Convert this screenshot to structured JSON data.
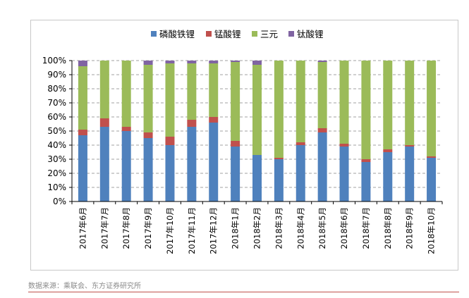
{
  "source_note": "数据来源：乘联会、东方证券研究所",
  "colors": {
    "lfp": "#4f81bd",
    "lmo": "#c0504d",
    "ncm": "#9bbb59",
    "lto": "#8064a2",
    "grid": "#a0a0a0",
    "rule": "#c0504d"
  },
  "chart_data": {
    "type": "bar",
    "stacked": true,
    "percent": true,
    "title": "",
    "xlabel": "",
    "ylabel": "",
    "ylim": [
      0,
      100
    ],
    "y_ticks": [
      "0%",
      "10%",
      "20%",
      "30%",
      "40%",
      "50%",
      "60%",
      "70%",
      "80%",
      "90%",
      "100%"
    ],
    "legend_position": "top",
    "grid": true,
    "categories": [
      "2017年6月",
      "2017年7月",
      "2017年8月",
      "2017年9月",
      "2017年10月",
      "2017年11月",
      "2017年12月",
      "2018年1月",
      "2018年2月",
      "2018年3月",
      "2018年4月",
      "2018年5月",
      "2018年6月",
      "2018年7月",
      "2018年8月",
      "2018年9月",
      "2018年10月"
    ],
    "series": [
      {
        "name": "磷酸铁锂",
        "color": "#4f81bd",
        "values": [
          47,
          53,
          50,
          45,
          40,
          53,
          56,
          39,
          33,
          30,
          40,
          49,
          39,
          28,
          35,
          39,
          31
        ]
      },
      {
        "name": "锰酸锂",
        "color": "#c0504d",
        "values": [
          4,
          6,
          3,
          4,
          6,
          5,
          4,
          4,
          0,
          1,
          2,
          3,
          2,
          2,
          2,
          1,
          1
        ]
      },
      {
        "name": "三元",
        "color": "#9bbb59",
        "values": [
          45,
          41,
          47,
          48,
          52,
          40,
          38,
          56,
          64,
          69,
          58,
          47,
          59,
          70,
          63,
          60,
          68
        ]
      },
      {
        "name": "钛酸锂",
        "color": "#8064a2",
        "values": [
          4,
          0,
          0,
          3,
          2,
          2,
          2,
          1,
          3,
          0,
          0,
          1,
          0,
          0,
          0,
          0,
          0
        ]
      }
    ]
  }
}
